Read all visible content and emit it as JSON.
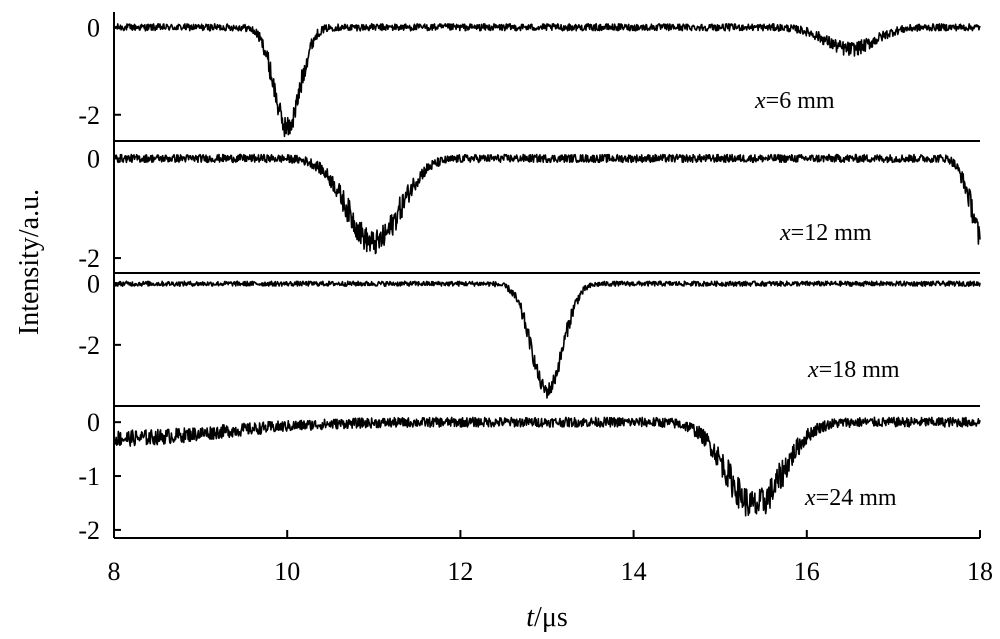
{
  "chart_data": {
    "type": "line",
    "xlabel": {
      "var": "t",
      "unit": "/μs"
    },
    "ylabel": "Intensity/a.u.",
    "xlim": [
      8,
      18
    ],
    "xticks": [
      "8",
      "10",
      "12",
      "14",
      "16",
      "18"
    ],
    "line_color": "#000000",
    "panels": [
      {
        "label": {
          "var": "x",
          "rest": "=6 mm"
        },
        "ylim": [
          -2.6,
          0.35
        ],
        "yticks": [
          "0",
          "-2"
        ],
        "noise": 0.08,
        "dips": [
          {
            "center": 10.0,
            "depth": 2.3,
            "width": 0.15
          },
          {
            "center": 16.5,
            "depth": 0.5,
            "width": 0.28
          }
        ]
      },
      {
        "label": {
          "var": "x",
          "rest": "=12 mm"
        },
        "ylim": [
          -2.3,
          0.35
        ],
        "yticks": [
          "0",
          "-2"
        ],
        "noise": 0.08,
        "dips": [
          {
            "center": 11.0,
            "depth": 1.7,
            "width": 0.3
          }
        ],
        "edge_drop": {
          "start": 17.6,
          "end": 18.0,
          "depth": 1.7
        }
      },
      {
        "label": {
          "var": "x",
          "rest": "=18 mm"
        },
        "ylim": [
          -4.0,
          0.35
        ],
        "yticks": [
          "0",
          "-2"
        ],
        "noise": 0.08,
        "dips": [
          {
            "center": 13.0,
            "depth": 3.5,
            "width": 0.18
          }
        ]
      },
      {
        "label": {
          "var": "x",
          "rest": "=24 mm"
        },
        "ylim": [
          -2.15,
          0.3
        ],
        "yticks": [
          "0",
          "-1",
          "-2"
        ],
        "noise": 0.09,
        "dips": [
          {
            "center": 15.4,
            "depth": 1.55,
            "width": 0.32
          },
          {
            "center": 8.0,
            "depth": 0.3,
            "width": 1.2
          }
        ]
      }
    ]
  }
}
